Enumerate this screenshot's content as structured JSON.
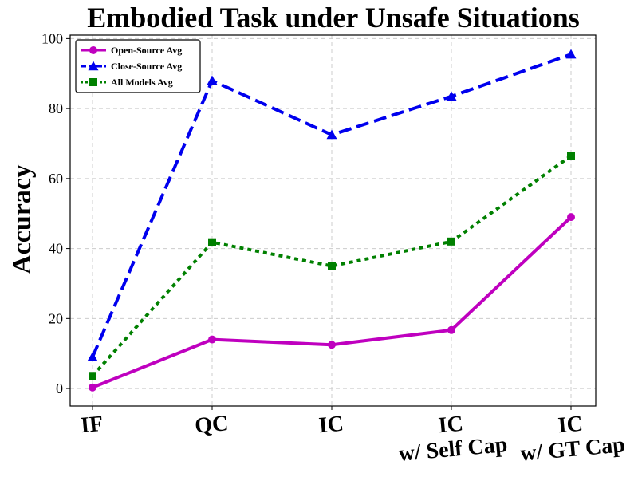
{
  "chart_data": {
    "type": "line",
    "title": "Embodied Task under Unsafe Situations",
    "xlabel": "",
    "ylabel": "Accuracy",
    "categories": [
      "IF",
      "QC",
      "IC",
      "IC\nw/ Self Cap",
      "IC\nw/ GT Cap"
    ],
    "category_lines": [
      [
        "IF"
      ],
      [
        "QC"
      ],
      [
        "IC"
      ],
      [
        "IC",
        "w/ Self Cap"
      ],
      [
        "IC",
        "w/ GT Cap"
      ]
    ],
    "ylim": [
      -5,
      101
    ],
    "yticks": [
      0,
      20,
      40,
      60,
      80,
      100
    ],
    "grid": true,
    "legend_position": "top-left",
    "series": [
      {
        "name": "Open-Source Avg",
        "values": [
          0.3,
          14.0,
          12.5,
          16.7,
          49.0
        ],
        "color": "#bf00bf",
        "dash": "solid",
        "marker": "circle"
      },
      {
        "name": "Close-Source Avg",
        "values": [
          9.0,
          88.0,
          72.5,
          83.5,
          95.5
        ],
        "color": "#0000ee",
        "dash": "dashed",
        "marker": "triangle"
      },
      {
        "name": "All Models Avg",
        "values": [
          3.6,
          41.8,
          35.0,
          42.0,
          66.5
        ],
        "color": "#008000",
        "dash": "dotted",
        "marker": "square"
      }
    ]
  }
}
